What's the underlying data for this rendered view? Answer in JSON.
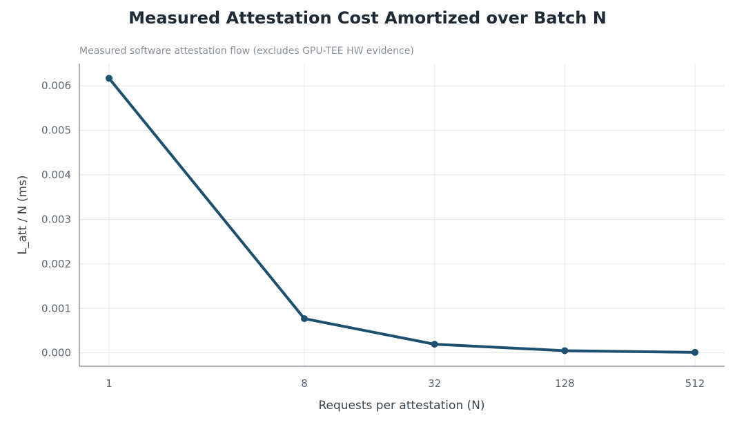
{
  "chart_data": {
    "type": "line",
    "title": "Measured Attestation Cost Amortized over Batch N",
    "subtitle": "Measured software attestation flow (excludes GPU-TEE HW evidence)",
    "xlabel": "Requests per attestation (N)",
    "ylabel": "L_att / N (ms)",
    "x_scale": "log2",
    "x": [
      1,
      8,
      32,
      128,
      512
    ],
    "x_tick_labels": [
      "1",
      "8",
      "32",
      "128",
      "512"
    ],
    "ylim": [
      -0.0003,
      0.0065
    ],
    "y_ticks": [
      0.0,
      0.001,
      0.002,
      0.003,
      0.004,
      0.005,
      0.006
    ],
    "y_tick_labels": [
      "0.000",
      "0.001",
      "0.002",
      "0.003",
      "0.004",
      "0.005",
      "0.006"
    ],
    "grid": true,
    "series": [
      {
        "values": [
          0.00617,
          0.00077,
          0.000195,
          5e-05,
          1.2e-05
        ]
      }
    ],
    "colors": {
      "line": "#1d4f6e",
      "grid": "#e3e6e9",
      "axis": "#8f979e"
    }
  }
}
